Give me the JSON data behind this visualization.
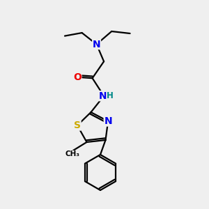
{
  "bg_color": "#efefef",
  "atom_colors": {
    "N": "#0000ee",
    "O": "#ee0000",
    "S": "#ccaa00",
    "C": "#000000",
    "H": "#008888"
  },
  "bond_color": "#000000",
  "bond_width": 1.6,
  "font_size_atom": 10,
  "font_size_h": 8.5,
  "xlim": [
    0,
    10
  ],
  "ylim": [
    0,
    10
  ]
}
